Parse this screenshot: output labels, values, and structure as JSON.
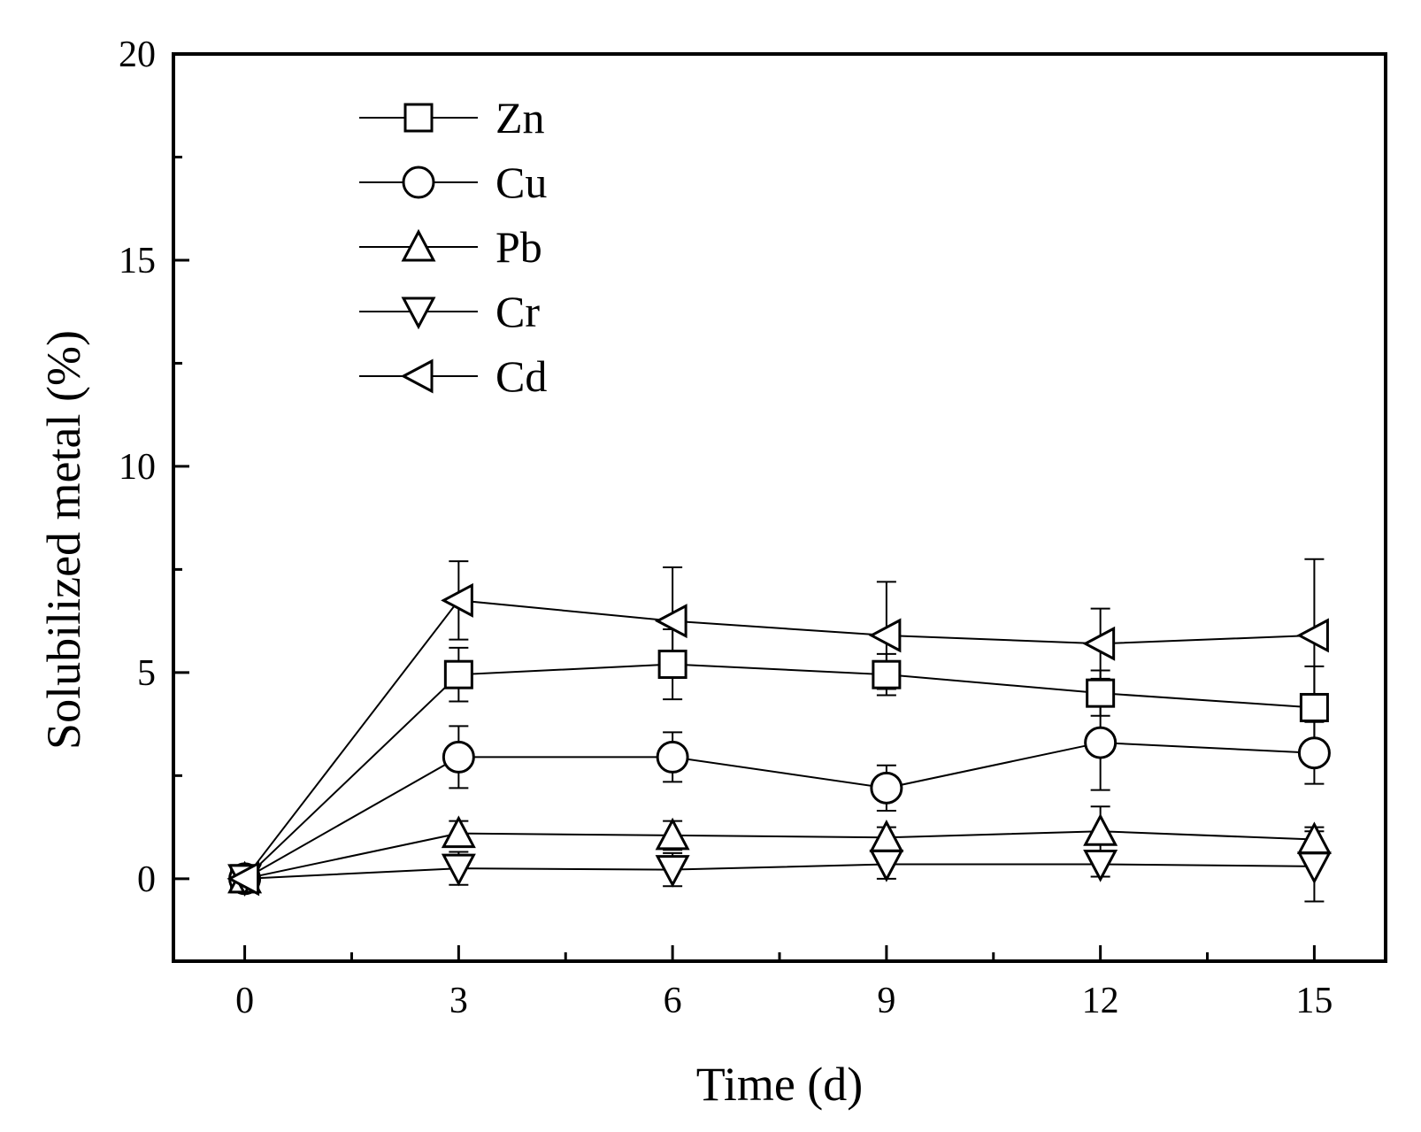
{
  "chart_data": {
    "type": "line",
    "title": "",
    "xlabel": "Time (d)",
    "ylabel": "Solubilized metal (%)",
    "xlim": [
      -1,
      16
    ],
    "ylim": [
      -2,
      20
    ],
    "xticks": [
      0,
      3,
      6,
      9,
      12,
      15
    ],
    "yticks": [
      0,
      5,
      10,
      15,
      20
    ],
    "x": [
      0,
      3,
      6,
      9,
      12,
      15
    ],
    "legend_position": "top-left",
    "grid": false,
    "series": [
      {
        "name": "Zn",
        "marker": "square",
        "values": [
          0,
          4.95,
          5.2,
          4.95,
          4.5,
          4.15
        ],
        "err": [
          0,
          0.65,
          0.85,
          0.5,
          0.55,
          1.0
        ]
      },
      {
        "name": "Cu",
        "marker": "circle",
        "values": [
          0,
          2.95,
          2.95,
          2.2,
          3.3,
          3.05
        ],
        "err": [
          0,
          0.75,
          0.6,
          0.55,
          1.15,
          0.75
        ]
      },
      {
        "name": "Pb",
        "marker": "triangle-up",
        "values": [
          0,
          1.1,
          1.05,
          1.0,
          1.15,
          0.95
        ],
        "err": [
          0,
          0.3,
          0.35,
          0.25,
          0.6,
          0.3
        ]
      },
      {
        "name": "Cr",
        "marker": "triangle-down",
        "values": [
          0,
          0.25,
          0.22,
          0.35,
          0.35,
          0.3
        ],
        "err": [
          0,
          0.4,
          0.4,
          0.35,
          0.3,
          0.85
        ]
      },
      {
        "name": "Cd",
        "marker": "triangle-left",
        "values": [
          0,
          6.75,
          6.25,
          5.9,
          5.7,
          5.9
        ],
        "err": [
          0,
          0.95,
          1.3,
          1.3,
          0.85,
          1.85
        ]
      }
    ]
  }
}
